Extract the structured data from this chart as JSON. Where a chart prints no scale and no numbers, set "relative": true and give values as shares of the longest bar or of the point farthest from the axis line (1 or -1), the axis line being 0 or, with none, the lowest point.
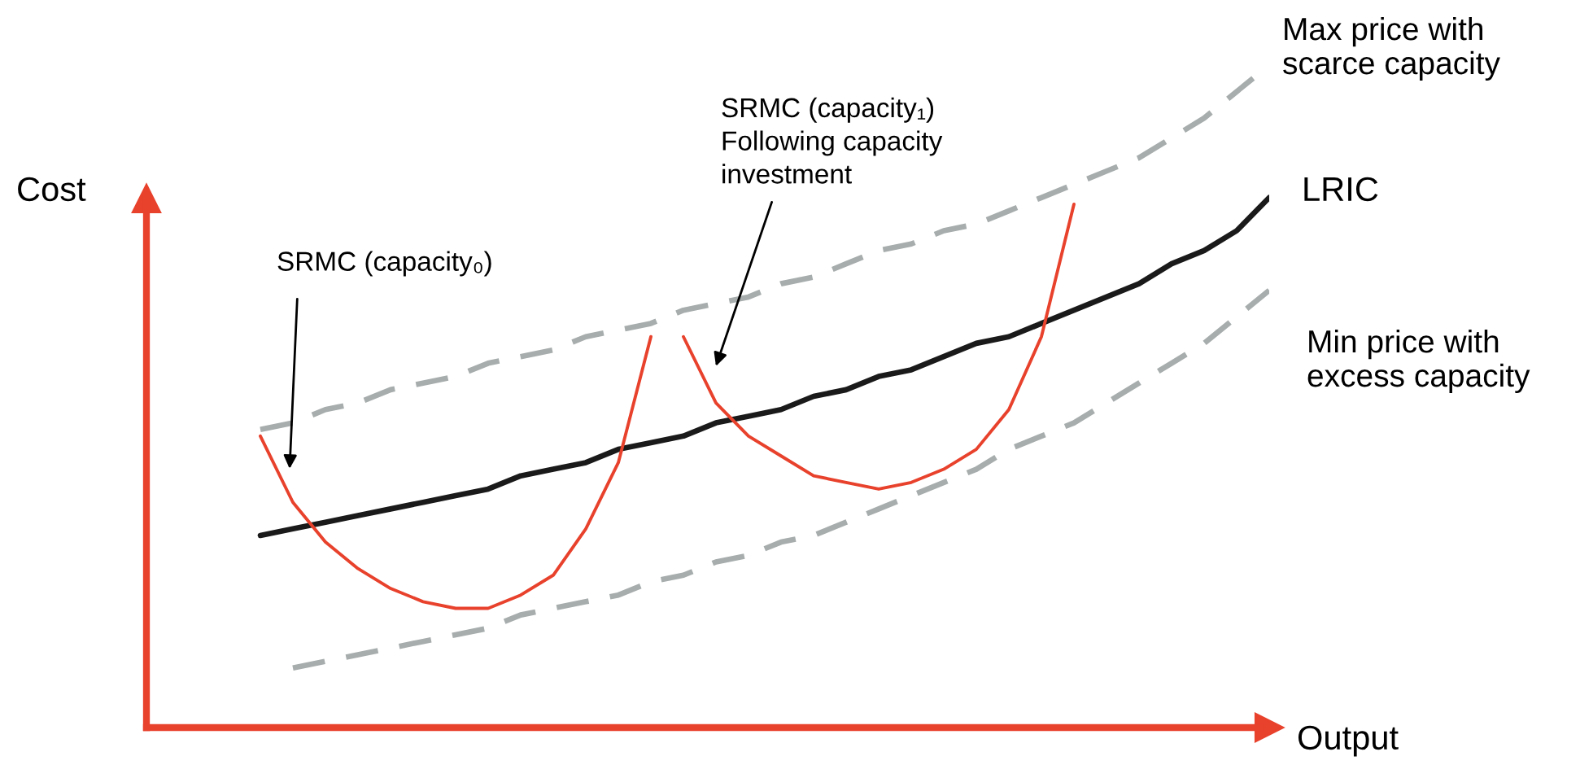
{
  "chart_data": {
    "type": "line",
    "relative": true,
    "xlabel": "Output",
    "ylabel": "Cost",
    "legend": false,
    "tick_labels": false,
    "categories": [
      null,
      null,
      null,
      null,
      null,
      null,
      null,
      null,
      null,
      null,
      null,
      null,
      null,
      null,
      null,
      null,
      null,
      null,
      null,
      null,
      null,
      null,
      null,
      null,
      null,
      null,
      null,
      null,
      null,
      null,
      null,
      null
    ],
    "series": [
      {
        "name": "Max price with\nscarce capacity",
        "color": "#a7acac",
        "line_style": "dashed",
        "values": [
          0.45,
          0.46,
          0.48,
          0.49,
          0.51,
          0.52,
          0.53,
          0.55,
          0.56,
          0.57,
          0.59,
          0.6,
          0.61,
          0.63,
          0.64,
          0.65,
          0.67,
          0.68,
          0.7,
          0.72,
          0.73,
          0.75,
          0.76,
          0.78,
          0.8,
          0.82,
          0.84,
          0.86,
          0.89,
          0.92,
          0.96,
          1.0
        ]
      },
      {
        "name": "LRIC",
        "color": "#1a1a1a",
        "line_style": "solid",
        "values": [
          0.29,
          0.3,
          0.31,
          0.32,
          0.33,
          0.34,
          0.35,
          0.36,
          0.38,
          0.39,
          0.4,
          0.42,
          0.43,
          0.44,
          0.46,
          0.47,
          0.48,
          0.5,
          0.51,
          0.53,
          0.54,
          0.56,
          0.58,
          0.59,
          0.61,
          0.63,
          0.65,
          0.67,
          0.7,
          0.72,
          0.75,
          0.8
        ]
      },
      {
        "name": "Min price with\nexcess capacity",
        "color": "#a7acac",
        "line_style": "dashed",
        "values": [
          null,
          0.09,
          0.1,
          0.11,
          0.12,
          0.13,
          0.14,
          0.15,
          0.17,
          0.18,
          0.19,
          0.2,
          0.22,
          0.23,
          0.25,
          0.26,
          0.28,
          0.29,
          0.31,
          0.33,
          0.35,
          0.37,
          0.39,
          0.42,
          0.44,
          0.46,
          0.49,
          0.52,
          0.55,
          0.58,
          0.62,
          0.66
        ]
      },
      {
        "name": "SRMC (capacity₀)",
        "color": "#e8412c",
        "line_style": "solid",
        "values": [
          0.44,
          0.34,
          0.28,
          0.24,
          0.21,
          0.19,
          0.18,
          0.18,
          0.2,
          0.23,
          0.3,
          0.4,
          0.59,
          null,
          null,
          null,
          null,
          null,
          null,
          null,
          null,
          null,
          null,
          null,
          null,
          null,
          null,
          null,
          null,
          null,
          null,
          null
        ]
      },
      {
        "name": "SRMC (capacity₁)\nFollowing capacity\ninvestment",
        "color": "#e8412c",
        "line_style": "solid",
        "values": [
          null,
          null,
          null,
          null,
          null,
          null,
          null,
          null,
          null,
          null,
          null,
          null,
          null,
          0.59,
          0.49,
          0.44,
          0.41,
          0.38,
          0.37,
          0.36,
          0.37,
          0.39,
          0.42,
          0.48,
          0.59,
          0.79,
          null,
          null,
          null,
          null,
          null,
          null
        ]
      }
    ]
  }
}
